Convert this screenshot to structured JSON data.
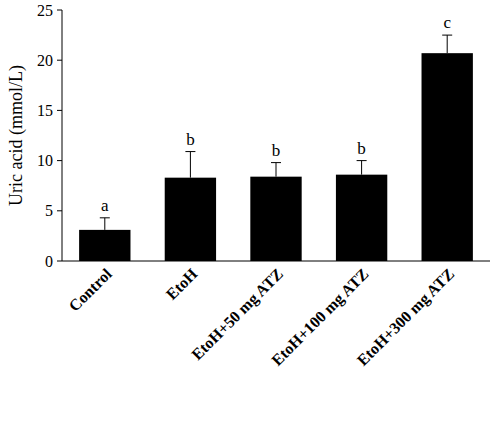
{
  "chart_data": {
    "type": "bar",
    "y_label": "Uric acid (mmol/L)",
    "categories": [
      "Control",
      "EtoH",
      "EtoH+50 mg ATZ",
      "EtoH+100 mg ATZ",
      "EtoH+300 mg ATZ"
    ],
    "values": [
      3.1,
      8.3,
      8.4,
      8.6,
      20.7
    ],
    "errors": [
      1.2,
      2.6,
      1.4,
      1.4,
      1.8
    ],
    "annotations": [
      "a",
      "b",
      "b",
      "b",
      "c"
    ],
    "color": "#000000",
    "ylim": [
      0,
      25
    ],
    "yticks": [
      0,
      5,
      10,
      15,
      20,
      25
    ],
    "grid": false
  }
}
